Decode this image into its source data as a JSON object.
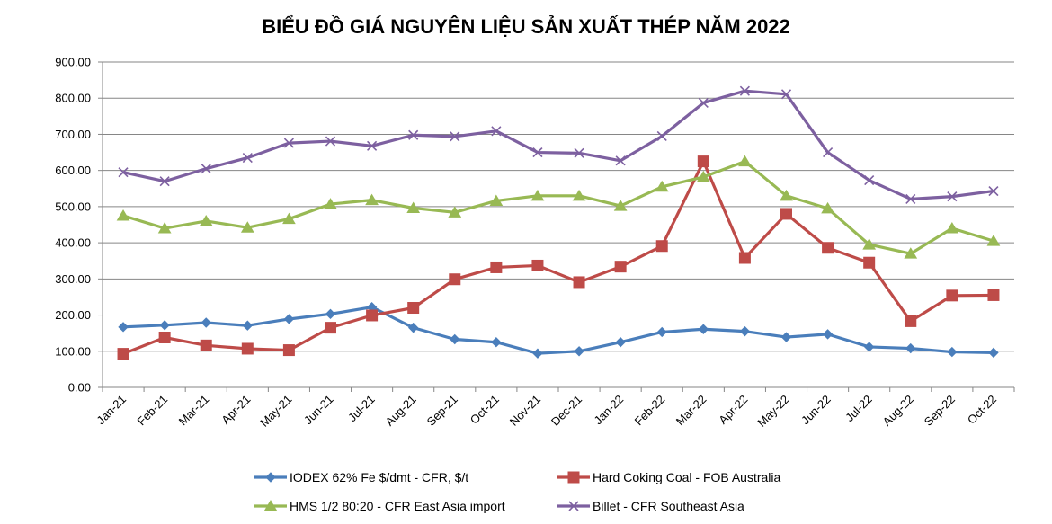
{
  "chart_data": {
    "type": "line",
    "title": "BIỂU ĐỒ GIÁ NGUYÊN LIỆU SẢN XUẤT THÉP NĂM 2022",
    "xlabel": "",
    "ylabel": "",
    "ylim": [
      0,
      900
    ],
    "y_ticks": [
      "0.00",
      "100.00",
      "200.00",
      "300.00",
      "400.00",
      "500.00",
      "600.00",
      "700.00",
      "800.00",
      "900.00"
    ],
    "grid": true,
    "legend_position": "bottom",
    "categories": [
      "Jan-21",
      "Feb-21",
      "Mar-21",
      "Apr-21",
      "May-21",
      "Jun-21",
      "Jul-21",
      "Aug-21",
      "Sep-21",
      "Oct-21",
      "Nov-21",
      "Dec-21",
      "Jan-22",
      "Feb-22",
      "Mar-22",
      "Apr-22",
      "May-22",
      "Jun-22",
      "Jul-22",
      "Aug-22",
      "Sep-22",
      "Oct-22"
    ],
    "series": [
      {
        "name": "IODEX 62% Fe $/dmt - CFR, $/t",
        "color": "#4a7ebb",
        "marker": "diamond",
        "values": [
          167,
          172,
          179,
          171,
          189,
          203,
          222,
          165,
          133,
          125,
          94,
          100,
          125,
          153,
          161,
          155,
          139,
          147,
          112,
          108,
          98,
          96
        ]
      },
      {
        "name": "Hard Coking Coal - FOB Australia",
        "color": "#be4b48",
        "marker": "square",
        "values": [
          93,
          138,
          116,
          107,
          103,
          165,
          199,
          220,
          299,
          332,
          337,
          291,
          334,
          391,
          625,
          358,
          480,
          386,
          345,
          183,
          254,
          255
        ]
      },
      {
        "name": "HMS 1/2 80:20 - CFR East Asia import",
        "color": "#98b954",
        "marker": "triangle",
        "values": [
          475,
          440,
          460,
          442,
          466,
          507,
          518,
          496,
          484,
          516,
          530,
          530,
          502,
          555,
          582,
          625,
          530,
          495,
          395,
          370,
          440,
          405
        ]
      },
      {
        "name": "Billet - CFR Southeast Asia",
        "color": "#7d60a0",
        "marker": "x",
        "values": [
          595,
          570,
          605,
          635,
          676,
          681,
          668,
          698,
          694,
          709,
          650,
          648,
          627,
          695,
          787,
          820,
          811,
          650,
          573,
          521,
          528,
          543
        ]
      }
    ]
  }
}
